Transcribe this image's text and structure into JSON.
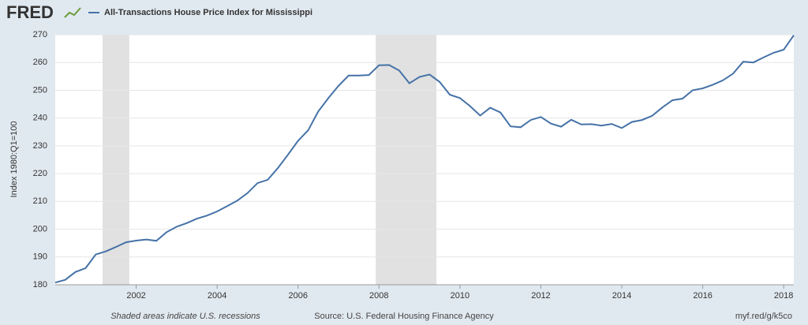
{
  "logo": "FRED",
  "chart_data": {
    "type": "line",
    "ylabel": "Index 1980:Q1=100",
    "note": "Shaded areas indicate U.S. recessions",
    "source": "Source: U.S. Federal Housing Finance Agency",
    "link": "myf.red/g/k5co",
    "x": [
      2000,
      2000.25,
      2000.5,
      2000.75,
      2001,
      2001.25,
      2001.5,
      2001.75,
      2002,
      2002.25,
      2002.5,
      2002.75,
      2003,
      2003.25,
      2003.5,
      2003.75,
      2004,
      2004.25,
      2004.5,
      2004.75,
      2005,
      2005.25,
      2005.5,
      2005.75,
      2006,
      2006.25,
      2006.5,
      2006.75,
      2007,
      2007.25,
      2007.5,
      2007.75,
      2008,
      2008.25,
      2008.5,
      2008.75,
      2009,
      2009.25,
      2009.5,
      2009.75,
      2010,
      2010.25,
      2010.5,
      2010.75,
      2011,
      2011.25,
      2011.5,
      2011.75,
      2012,
      2012.25,
      2012.5,
      2012.75,
      2013,
      2013.25,
      2013.5,
      2013.75,
      2014,
      2014.25,
      2014.5,
      2014.75,
      2015,
      2015.25,
      2015.5,
      2015.75,
      2016,
      2016.25,
      2016.5,
      2016.75,
      2017,
      2017.25,
      2017.5,
      2017.75,
      2018,
      2018.25
    ],
    "series": [
      {
        "name": "All-Transactions House Price Index for Mississippi",
        "color": "#4572a7",
        "values": [
          180.8,
          181.8,
          184.6,
          186.0,
          190.9,
          192.0,
          193.6,
          195.3,
          195.9,
          196.3,
          195.8,
          198.9,
          200.9,
          202.2,
          203.8,
          204.9,
          206.4,
          208.3,
          210.3,
          213.0,
          216.6,
          217.8,
          222.0,
          226.8,
          231.8,
          235.6,
          242.4,
          247.2,
          251.6,
          255.3,
          255.3,
          255.5,
          259.0,
          259.1,
          257.1,
          252.5,
          254.8,
          255.7,
          253.0,
          248.4,
          247.2,
          244.3,
          240.9,
          243.7,
          242.0,
          237.0,
          236.7,
          239.3,
          240.4,
          238.0,
          236.9,
          239.4,
          237.7,
          237.8,
          237.3,
          237.9,
          236.4,
          238.6,
          239.3,
          240.8,
          243.8,
          246.4,
          247.0,
          250.0,
          250.7,
          252.0,
          253.6,
          256.0,
          260.3,
          260.0,
          261.8,
          263.5,
          264.6,
          269.8
        ]
      }
    ],
    "recessions": [
      [
        2001.17,
        2001.83
      ],
      [
        2007.92,
        2009.42
      ]
    ],
    "recession_color": "#e1e1e1",
    "xlim": [
      2000,
      2018.25
    ],
    "xticks": [
      2002,
      2004,
      2006,
      2008,
      2010,
      2012,
      2014,
      2016,
      2018
    ],
    "ylim": [
      180,
      270
    ],
    "yticks": [
      180,
      190,
      200,
      210,
      220,
      230,
      240,
      250,
      260,
      270
    ],
    "grid": true
  }
}
